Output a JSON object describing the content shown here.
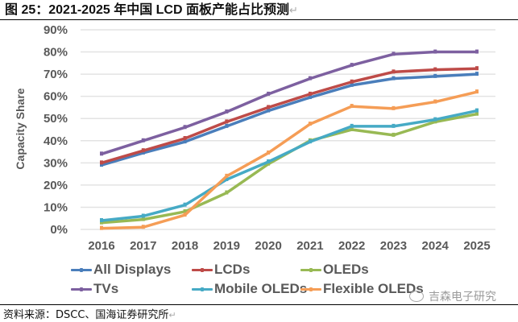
{
  "header": {
    "title": "图 25：2021-2025 年中国 LCD 面板产能占比预测",
    "paragraph_mark": "↵"
  },
  "footer": {
    "source": "资料来源：DSCC、国海证券研究所",
    "paragraph_mark": "↵"
  },
  "watermark": {
    "icon": "wechat-icon",
    "text": "吉森电子研究"
  },
  "chart_data": {
    "type": "line",
    "title": "",
    "xlabel": "",
    "ylabel": "Capacity Share",
    "ylim": [
      0,
      90
    ],
    "y_ticks": [
      "0%",
      "10%",
      "20%",
      "30%",
      "40%",
      "50%",
      "60%",
      "70%",
      "80%",
      "90%"
    ],
    "y_tick_values": [
      0,
      10,
      20,
      30,
      40,
      50,
      60,
      70,
      80,
      90
    ],
    "grid": true,
    "legend_position": "bottom",
    "categories": [
      "2016",
      "2017",
      "2018",
      "2019",
      "2020",
      "2021",
      "2022",
      "2023",
      "2024",
      "2025"
    ],
    "series": [
      {
        "name": "All Displays",
        "color": "#4a7ebb",
        "values": [
          29,
          34.5,
          39.5,
          46.5,
          53.5,
          59.5,
          65,
          68,
          69,
          70
        ]
      },
      {
        "name": "LCDs",
        "color": "#be4b48",
        "values": [
          30,
          35.5,
          41,
          48.5,
          55,
          61,
          66.5,
          71,
          72,
          72.5
        ]
      },
      {
        "name": "OLEDs",
        "color": "#98b954",
        "values": [
          3,
          4.5,
          8,
          16.5,
          29.5,
          40,
          45,
          42.5,
          48.5,
          52
        ]
      },
      {
        "name": "TVs",
        "color": "#7d60a0",
        "values": [
          34,
          40,
          46,
          53,
          61,
          68,
          74,
          79,
          80,
          80
        ]
      },
      {
        "name": "Mobile OLEDs",
        "color": "#46aac5",
        "values": [
          4,
          6,
          11,
          22.5,
          30.5,
          39.5,
          46.5,
          46.5,
          49.5,
          53.5
        ]
      },
      {
        "name": "Flexible OLEDs",
        "color": "#f59d56",
        "values": [
          0.5,
          1,
          6.5,
          24,
          34.5,
          47.5,
          55.5,
          54.5,
          57.5,
          62
        ]
      }
    ]
  }
}
